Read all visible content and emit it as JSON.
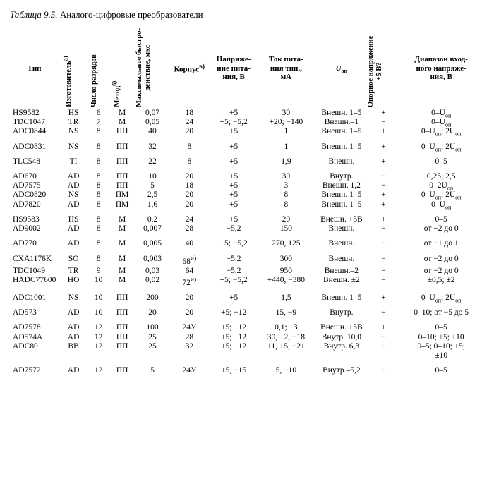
{
  "caption_label": "Таблица 9.5.",
  "caption_text": "Аналого-цифровые преобразователи",
  "headers": {
    "type": "Тип",
    "maker": "Изготовитель",
    "bits": "Число разрядов",
    "method": "Метод",
    "speed": "Максимальное быстро-\nдействие, мкс",
    "package": "Корпус",
    "vsupply": "Напряже-\nние пита-\nния, В",
    "isupply": "Ток пита-\nния тип.,\nмА",
    "uop": "U",
    "uop_sub": "оп",
    "ref5v": "Опорное напряжение\n+5 В?",
    "range": "Диапазон вход-\nного напряже-\nния, В",
    "note_a": "а)",
    "note_b": "б)",
    "note_v": "в)"
  },
  "Uop_html": "U<sub>оп</sub>",
  "groups": [
    [
      [
        "HS9582",
        "HS",
        "6",
        "М",
        "0,07",
        "18",
        "+5",
        "30",
        "Внешн. 1–5",
        "+",
        "0–U<sub>оп</sub>"
      ],
      [
        "TDC1047",
        "TR",
        "7",
        "М",
        "0,05",
        "24",
        "+5; −5,2",
        "+20; −140",
        "Внешн.–1",
        "−",
        "0–U<sub>оп</sub>"
      ],
      [
        "ADC0844",
        "NS",
        "8",
        "ПП",
        "40",
        "20",
        "+5",
        "1",
        "Внешн. 1–5",
        "+",
        "0–U<sub>оп</sub>; 2U<sub>оп</sub>"
      ]
    ],
    [
      [
        "ADC0831",
        "NS",
        "8",
        "ПП",
        "32",
        "8",
        "+5",
        "1",
        "Внешн. 1–5",
        "+",
        "0–U<sub>оп</sub>; 2U<sub>оп</sub>"
      ]
    ],
    [
      [
        "TLC548",
        "TI",
        "8",
        "ПП",
        "22",
        "8",
        "+5",
        "1,9",
        "Внешн.",
        "+",
        "0–5"
      ]
    ],
    [
      [
        "AD670",
        "AD",
        "8",
        "ПП",
        "10",
        "20",
        "+5",
        "30",
        "Внутр.",
        "−",
        "0,25; 2,5"
      ],
      [
        "AD7575",
        "AD",
        "8",
        "ПП",
        "5",
        "18",
        "+5",
        "3",
        "Внешн. 1,2",
        "−",
        "0–2U<sub>оп</sub>"
      ],
      [
        "ADC0820",
        "NS",
        "8",
        "ПМ",
        "2,5",
        "20",
        "+5",
        "8",
        "Внешн. 1–5",
        "+",
        "0–U<sub>оп</sub>; 2U<sub>оп</sub>"
      ],
      [
        "AD7820",
        "AD",
        "8",
        "ПМ",
        "1,6",
        "20",
        "+5",
        "8",
        "Внешн. 1–5",
        "+",
        "0–U<sub>оп</sub>"
      ]
    ],
    [
      [
        "HS9583",
        "HS",
        "8",
        "М",
        "0,2",
        "24",
        "+5",
        "20",
        "Внешн. +5В",
        "+",
        "0–5"
      ],
      [
        "AD9002",
        "AD",
        "8",
        "М",
        "0,007",
        "28",
        "−5,2",
        "150",
        "Внешн.",
        "−",
        "от −2 до 0"
      ]
    ],
    [
      [
        "AD770",
        "AD",
        "8",
        "М",
        "0,005",
        "40",
        "+5; −5,2",
        "270, 125",
        "Внешн.",
        "−",
        "от −1 до 1"
      ]
    ],
    [
      [
        "CXA1176K",
        "SO",
        "8",
        "М",
        "0,003",
        "68<sup>и)</sup>",
        "−5,2",
        "300",
        "Внешн.",
        "−",
        "от −2 до 0"
      ],
      [
        "TDC1049",
        "TR",
        "9",
        "М",
        "0,03",
        "64",
        "−5,2",
        "950",
        "Внешн.–2",
        "−",
        "от −2 до 0"
      ],
      [
        "HADC77600",
        "HO",
        "10",
        "М",
        "0,02",
        "72<sup>и)</sup>",
        "+5; −5,2",
        "+440, −380",
        "Внешн. ±2",
        "−",
        "±0,5; ±2"
      ]
    ],
    [
      [
        "ADC1001",
        "NS",
        "10",
        "ПП",
        "200",
        "20",
        "+5",
        "1,5",
        "Внешн. 1–5",
        "+",
        "0–U<sub>оп</sub>; 2U<sub>оп</sub>"
      ]
    ],
    [
      [
        "AD573",
        "AD",
        "10",
        "ПП",
        "20",
        "20",
        "+5; −12",
        "15, −9",
        "Внутр.",
        "−",
        "0–10; от −5 до 5"
      ]
    ],
    [
      [
        "AD7578",
        "AD",
        "12",
        "ПП",
        "100",
        "24У",
        "+5; ±12",
        "0,1; ±3",
        "Внешн. +5В",
        "+",
        "0–5"
      ],
      [
        "AD574A",
        "AD",
        "12",
        "ПП",
        "25",
        "28",
        "+5; ±12",
        "30, +2, −18",
        "Внутр. 10,0",
        "−",
        "0–10; ±5; ±10"
      ],
      [
        "ADC80",
        "BB",
        "12",
        "ПП",
        "25",
        "32",
        "+5; ±12",
        "11, +5, −21",
        "Внутр. 6,3",
        "−",
        "0–5; 0–10; ±5;\n±10"
      ]
    ],
    [
      [
        "AD7572",
        "AD",
        "12",
        "ПП",
        "5",
        "24У",
        "+5, −15",
        "5, −10",
        "Внутр.–5,2",
        "−",
        "0–5"
      ]
    ]
  ]
}
